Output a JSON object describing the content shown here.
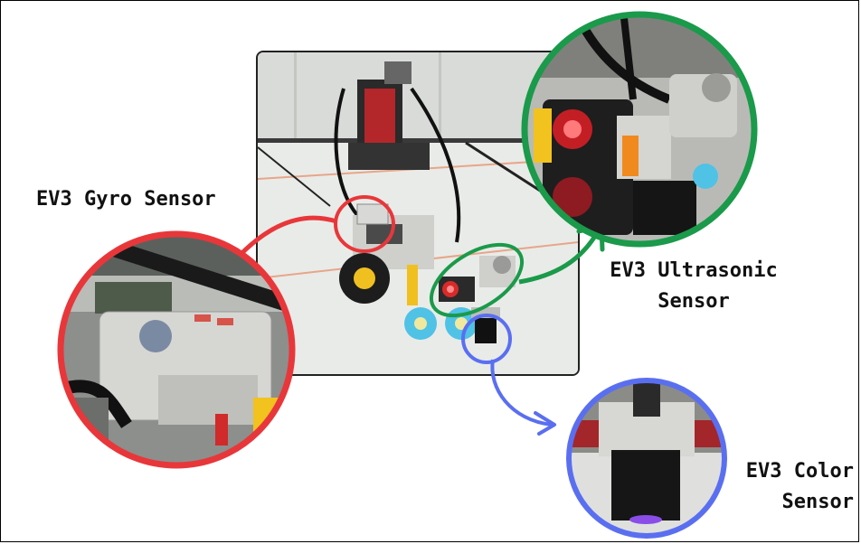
{
  "labels": {
    "gyro": "EV3 Gyro Sensor",
    "ultrasonic_line1": "EV3 Ultrasonic",
    "ultrasonic_line2": "Sensor",
    "color_line1": "EV3 Color",
    "color_line2": "Sensor"
  },
  "colors": {
    "gyro_highlight": "#e8373a",
    "ultrasonic_highlight": "#1a9a4a",
    "color_highlight": "#5a6ff0",
    "frame": "#000000",
    "label_text": "#111111"
  },
  "icons": {
    "robot_photo": "lego-ev3-robot-photo",
    "gyro_zoom": "gyro-sensor-closeup",
    "ultrasonic_zoom": "ultrasonic-sensor-closeup",
    "color_zoom": "color-sensor-closeup"
  }
}
